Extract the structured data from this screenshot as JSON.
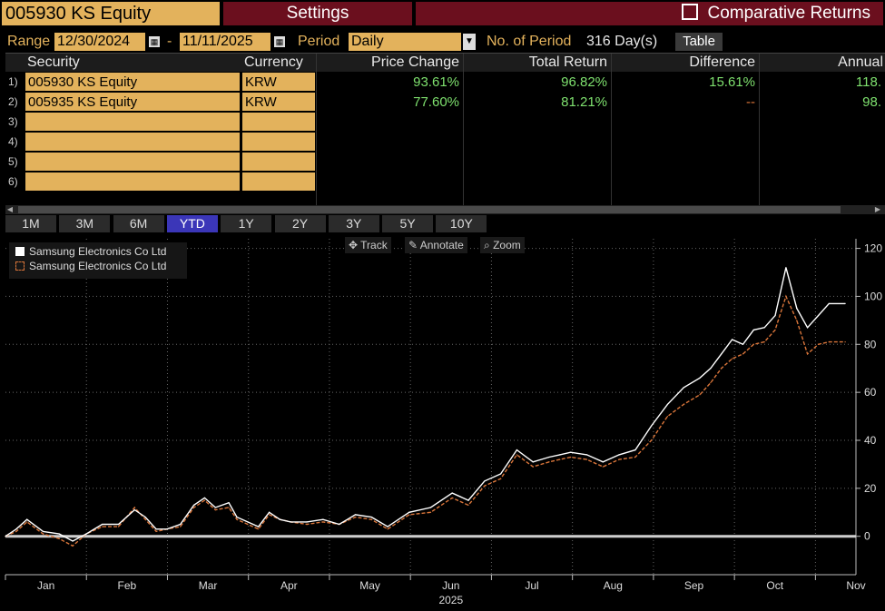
{
  "header": {
    "ticker": "005930 KS Equity",
    "settings_label": "Settings",
    "comparative_label": "Comparative Returns"
  },
  "controls": {
    "range_label": "Range",
    "start_date": "12/30/2024",
    "dash": "-",
    "end_date": "11/11/2025",
    "period_label": "Period",
    "period_value": "Daily",
    "num_period_label": "No. of Period",
    "num_period_value": "316 Day(s)",
    "table_button": "Table"
  },
  "table": {
    "headers": [
      "Security",
      "Currency",
      "Price Change",
      "Total Return",
      "Difference",
      "Annual"
    ],
    "rows": [
      {
        "num": "1)",
        "security": "005930 KS Equity",
        "currency": "KRW",
        "price_change": "93.61%",
        "total_return": "96.82%",
        "difference": "15.61%",
        "annual": "118."
      },
      {
        "num": "2)",
        "security": "005935 KS Equity",
        "currency": "KRW",
        "price_change": "77.60%",
        "total_return": "81.21%",
        "difference": "--",
        "annual": "98."
      },
      {
        "num": "3)",
        "security": "",
        "currency": "",
        "price_change": "",
        "total_return": "",
        "difference": "",
        "annual": ""
      },
      {
        "num": "4)",
        "security": "",
        "currency": "",
        "price_change": "",
        "total_return": "",
        "difference": "",
        "annual": ""
      },
      {
        "num": "5)",
        "security": "",
        "currency": "",
        "price_change": "",
        "total_return": "",
        "difference": "",
        "annual": ""
      },
      {
        "num": "6)",
        "security": "",
        "currency": "",
        "price_change": "",
        "total_return": "",
        "difference": "",
        "annual": ""
      }
    ]
  },
  "periods": [
    "1M",
    "3M",
    "6M",
    "YTD",
    "1Y",
    "2Y",
    "3Y",
    "5Y",
    "10Y"
  ],
  "active_period": "YTD",
  "toolbar": {
    "track": "Track",
    "annotate": "Annotate",
    "zoom": "Zoom"
  },
  "colors": {
    "accent": "#e3b25c",
    "series1": "#ffffff",
    "series2": "#d9753a",
    "positive": "#7ee06e"
  },
  "chart_data": {
    "type": "line",
    "title": "",
    "xlabel": "2025",
    "ylabel": "",
    "ylim": [
      -16,
      124
    ],
    "yticks": [
      0,
      20,
      40,
      60,
      80,
      100,
      120
    ],
    "month_ticks": [
      "Jan",
      "Feb",
      "Mar",
      "Apr",
      "May",
      "Jun",
      "Jul",
      "Aug",
      "Sep",
      "Oct",
      "Nov"
    ],
    "year_label": "2025",
    "legend_position": "top-left",
    "x_is_day_index": true,
    "x_range": [
      0,
      316
    ],
    "series": [
      {
        "name": "Samsung Electronics Co Ltd",
        "style": "solid",
        "x": [
          0,
          4,
          8,
          14,
          20,
          25,
          30,
          36,
          42,
          48,
          52,
          56,
          60,
          65,
          70,
          74,
          78,
          83,
          86,
          90,
          94,
          98,
          102,
          106,
          112,
          118,
          124,
          130,
          136,
          142,
          150,
          158,
          166,
          172,
          178,
          184,
          190,
          196,
          202,
          206,
          210,
          216,
          222,
          228,
          234,
          240,
          246,
          252,
          258,
          262,
          266,
          270,
          274,
          278,
          282,
          286,
          290,
          294,
          298,
          302,
          306,
          312
        ],
        "values": [
          0,
          3,
          7,
          2,
          1,
          -2,
          1,
          5,
          5,
          11,
          8,
          3,
          3,
          5,
          13,
          16,
          12,
          14,
          8,
          6,
          4,
          10,
          7,
          6,
          6,
          7,
          5,
          9,
          8,
          4,
          10,
          12,
          18,
          15,
          23,
          26,
          36,
          31,
          33,
          34,
          35,
          34,
          31,
          34,
          36,
          46,
          55,
          62,
          66,
          70,
          76,
          82,
          80,
          86,
          87,
          92,
          112,
          95,
          87,
          92,
          97,
          97
        ]
      },
      {
        "name": "Samsung Electronics Co Ltd",
        "style": "dashed",
        "x": [
          0,
          4,
          8,
          14,
          20,
          25,
          30,
          36,
          42,
          48,
          52,
          56,
          60,
          65,
          70,
          74,
          78,
          83,
          86,
          90,
          94,
          98,
          102,
          106,
          112,
          118,
          124,
          130,
          136,
          142,
          150,
          158,
          166,
          172,
          178,
          184,
          190,
          196,
          202,
          206,
          210,
          216,
          222,
          228,
          234,
          240,
          246,
          252,
          258,
          262,
          266,
          270,
          274,
          278,
          282,
          286,
          290,
          294,
          298,
          302,
          306,
          312
        ],
        "values": [
          0,
          2,
          6,
          1,
          -1,
          -4,
          1,
          4,
          4,
          12,
          7,
          2,
          3,
          4,
          12,
          15,
          11,
          12,
          7,
          5,
          3,
          9,
          7,
          6,
          5,
          6,
          5,
          8,
          7,
          3,
          9,
          10,
          16,
          13,
          21,
          24,
          34,
          29,
          31,
          32,
          33,
          32,
          29,
          32,
          33,
          40,
          50,
          55,
          59,
          64,
          70,
          74,
          76,
          80,
          81,
          86,
          100,
          90,
          76,
          80,
          81,
          81
        ]
      }
    ]
  }
}
